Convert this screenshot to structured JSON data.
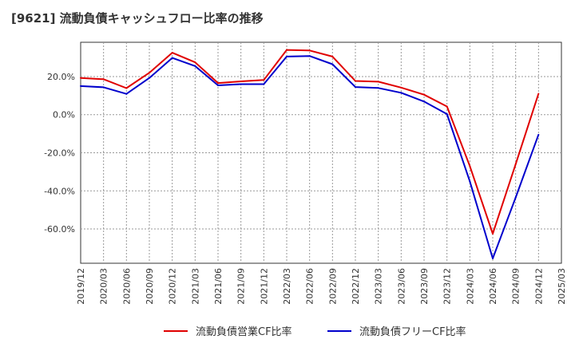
{
  "chart_data": {
    "type": "line",
    "title": "[9621]  流動負債キャッシュフロー比率の推移",
    "xlabel": "",
    "ylabel": "",
    "ylim": [
      -78,
      38
    ],
    "yticks": [
      20,
      0,
      -20,
      -40,
      -60
    ],
    "ytick_labels": [
      "20.0%",
      "0.0%",
      "-20.0%",
      "-40.0%",
      "-60.0%"
    ],
    "xtick_labels": [
      "2019/12",
      "2020/03",
      "2020/06",
      "2020/09",
      "2020/12",
      "2021/03",
      "2021/06",
      "2021/09",
      "2021/12",
      "2022/03",
      "2022/06",
      "2022/09",
      "2022/12",
      "2023/03",
      "2023/06",
      "2023/09",
      "2023/12",
      "2024/03",
      "2024/06",
      "2024/09",
      "2024/12",
      "2025/03"
    ],
    "grid": true,
    "legend_position": "bottom",
    "series": [
      {
        "name": "流動負債営業CF比率",
        "color": "#e00000",
        "values": [
          19.3,
          18.6,
          13.9,
          22.0,
          32.5,
          27.5,
          16.6,
          17.5,
          18.2,
          34.0,
          33.7,
          30.5,
          17.7,
          17.3,
          14.2,
          10.5,
          4.3,
          -27.0,
          -62.5,
          -26.0,
          11.0,
          null
        ]
      },
      {
        "name": "流動負債フリーCF比率",
        "color": "#0000cc",
        "values": [
          15.0,
          14.4,
          10.9,
          19.3,
          29.8,
          25.5,
          15.4,
          16.0,
          16.0,
          30.5,
          30.8,
          26.5,
          14.5,
          14.0,
          11.5,
          6.9,
          0.3,
          -35.0,
          -75.5,
          -43.5,
          -10.5,
          null
        ]
      }
    ]
  }
}
